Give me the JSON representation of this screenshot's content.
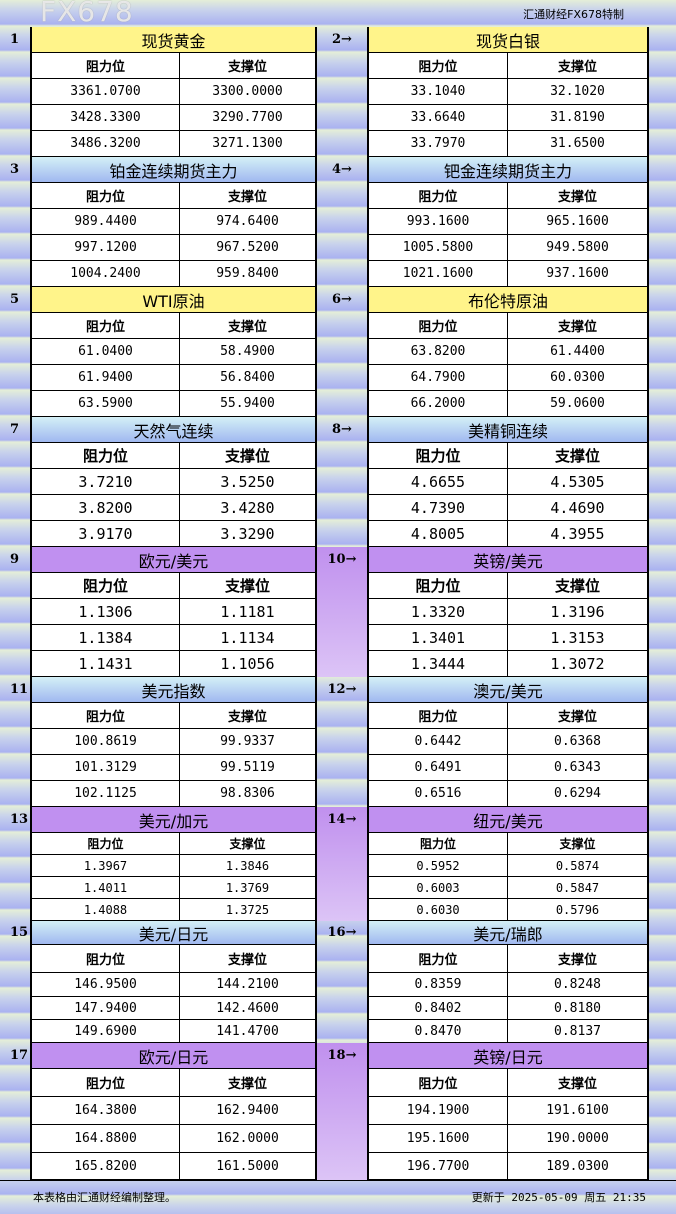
{
  "brand": "汇通财经FX678特制",
  "col_resistance": "阻力位",
  "col_support": "支撑位",
  "sections": [
    {
      "colors": "yellow",
      "left": {
        "num": "1",
        "title": "现货黄金",
        "rows": [
          [
            "3361.0700",
            "3300.0000"
          ],
          [
            "3428.3300",
            "3290.7700"
          ],
          [
            "3486.3200",
            "3271.1300"
          ]
        ]
      },
      "right": {
        "num": "2→",
        "title": "现货白银",
        "rows": [
          [
            "33.1040",
            "32.1020"
          ],
          [
            "33.6640",
            "31.8190"
          ],
          [
            "33.7970",
            "31.6500"
          ]
        ]
      }
    },
    {
      "colors": "blue",
      "left": {
        "num": "3",
        "title": "铂金连续期货主力",
        "rows": [
          [
            "989.4400",
            "974.6400"
          ],
          [
            "997.1200",
            "967.5200"
          ],
          [
            "1004.2400",
            "959.8400"
          ]
        ]
      },
      "right": {
        "num": "4→",
        "title": "钯金连续期货主力",
        "rows": [
          [
            "993.1600",
            "965.1600"
          ],
          [
            "1005.5800",
            "949.5800"
          ],
          [
            "1021.1600",
            "937.1600"
          ]
        ]
      }
    },
    {
      "colors": "yellow",
      "left": {
        "num": "5",
        "title": "WTI原油",
        "rows": [
          [
            "61.0400",
            "58.4900"
          ],
          [
            "61.9400",
            "56.8400"
          ],
          [
            "63.5900",
            "55.9400"
          ]
        ]
      },
      "right": {
        "num": "6→",
        "title": "布伦特原油",
        "rows": [
          [
            "63.8200",
            "61.4400"
          ],
          [
            "64.7900",
            "60.0300"
          ],
          [
            "66.2000",
            "59.0600"
          ]
        ]
      }
    },
    {
      "colors": "blue",
      "left": {
        "num": "7",
        "title": "天然气连续",
        "rows": [
          [
            "3.7210",
            "3.5250"
          ],
          [
            "3.8200",
            "3.4280"
          ],
          [
            "3.9170",
            "3.3290"
          ]
        ]
      },
      "right": {
        "num": "8→",
        "title": "美精铜连续",
        "rows": [
          [
            "4.6655",
            "4.5305"
          ],
          [
            "4.7390",
            "4.4690"
          ],
          [
            "4.8005",
            "4.3955"
          ]
        ]
      }
    },
    {
      "colors": "purple",
      "left": {
        "num": "9",
        "title": "欧元/美元",
        "rows": [
          [
            "1.1306",
            "1.1181"
          ],
          [
            "1.1384",
            "1.1134"
          ],
          [
            "1.1431",
            "1.1056"
          ]
        ]
      },
      "right": {
        "num": "10→",
        "title": "英镑/美元",
        "rows": [
          [
            "1.3320",
            "1.3196"
          ],
          [
            "1.3401",
            "1.3153"
          ],
          [
            "1.3444",
            "1.3072"
          ]
        ]
      }
    },
    {
      "colors": "blue",
      "left": {
        "num": "11",
        "title": "美元指数",
        "rows": [
          [
            "100.8619",
            "99.9337"
          ],
          [
            "101.3129",
            "99.5119"
          ],
          [
            "102.1125",
            "98.8306"
          ]
        ]
      },
      "right": {
        "num": "12→",
        "title": "澳元/美元",
        "rows": [
          [
            "0.6442",
            "0.6368"
          ],
          [
            "0.6491",
            "0.6343"
          ],
          [
            "0.6516",
            "0.6294"
          ]
        ]
      }
    },
    {
      "colors": "purple",
      "left": {
        "num": "13",
        "title": "美元/加元",
        "rows": [
          [
            "1.3967",
            "1.3846"
          ],
          [
            "1.4011",
            "1.3769"
          ],
          [
            "1.4088",
            "1.3725"
          ]
        ]
      },
      "right": {
        "num": "14→",
        "title": "纽元/美元",
        "rows": [
          [
            "0.5952",
            "0.5874"
          ],
          [
            "0.6003",
            "0.5847"
          ],
          [
            "0.6030",
            "0.5796"
          ]
        ]
      }
    },
    {
      "colors": "blue",
      "left": {
        "num": "15",
        "title": "美元/日元",
        "rows": [
          [
            "146.9500",
            "144.2100"
          ],
          [
            "147.9400",
            "142.4600"
          ],
          [
            "149.6900",
            "141.4700"
          ]
        ]
      },
      "right": {
        "num": "16→",
        "title": "美元/瑞郎",
        "rows": [
          [
            "0.8359",
            "0.8248"
          ],
          [
            "0.8402",
            "0.8180"
          ],
          [
            "0.8470",
            "0.8137"
          ]
        ]
      }
    },
    {
      "colors": "purple",
      "left": {
        "num": "17",
        "title": "欧元/日元",
        "rows": [
          [
            "164.3800",
            "162.9400"
          ],
          [
            "164.8800",
            "162.0000"
          ],
          [
            "165.8200",
            "161.5000"
          ]
        ]
      },
      "right": {
        "num": "18→",
        "title": "英镑/日元",
        "rows": [
          [
            "194.1900",
            "191.6100"
          ],
          [
            "195.1600",
            "190.0000"
          ],
          [
            "196.7700",
            "189.0300"
          ]
        ]
      }
    }
  ],
  "footer": {
    "note": "本表格由汇通财经编制整理。",
    "updated": "更新于 2025-05-09 周五 21:35"
  },
  "watermark": "FX678"
}
